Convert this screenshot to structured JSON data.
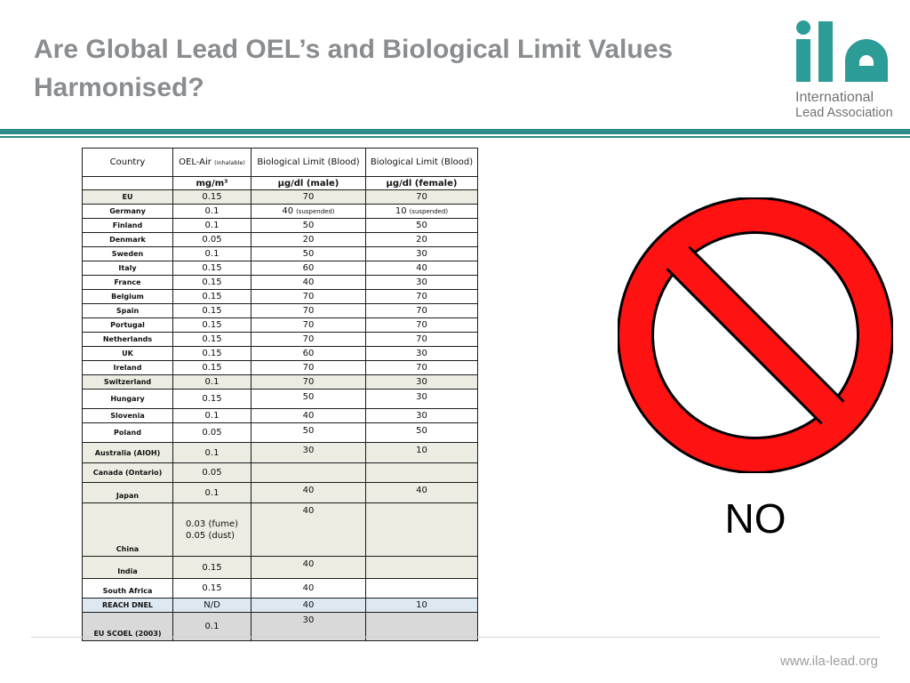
{
  "slide": {
    "title_line1": "Are Global Lead OEL’s and Biological Limit Values",
    "title_line2": "Harmonised?",
    "footer_url": "www.ila-lead.org",
    "answer": "NO"
  },
  "logo": {
    "mark": "ila",
    "line1": "International",
    "line2": "Lead Association",
    "color": "#2b9c96"
  },
  "colors": {
    "accent": "#2b8b86",
    "no_sign_red": "#ff1212",
    "unit_blue": "#1f3f8c"
  },
  "table": {
    "headers": {
      "country": "Country",
      "oel": "OEL-Air",
      "oel_small": "(inhalable)",
      "blood_male": "Biological Limit (Blood)",
      "blood_female": "Biological Limit (Blood)"
    },
    "units": {
      "country": "",
      "oel": "mg/m³",
      "male": "µg/dl (male)",
      "female": "µg/dl (female)"
    },
    "rows": [
      {
        "country": "EU",
        "oel": "0.15",
        "male": "70",
        "female": "70"
      },
      {
        "country": "Germany",
        "oel": "0.1",
        "male": "40",
        "male_note": "(suspended)",
        "female": "10",
        "female_note": "(suspended)"
      },
      {
        "country": "Finland",
        "oel": "0.1",
        "male": "50",
        "female": "50"
      },
      {
        "country": "Denmark",
        "oel": "0.05",
        "male": "20",
        "female": "20"
      },
      {
        "country": "Sweden",
        "oel": "0.1",
        "male": "50",
        "female": "30"
      },
      {
        "country": "Italy",
        "oel": "0.15",
        "male": "60",
        "female": "40"
      },
      {
        "country": "France",
        "oel": "0.15",
        "male": "40",
        "female": "30"
      },
      {
        "country": "Belgium",
        "oel": "0.15",
        "male": "70",
        "female": "70"
      },
      {
        "country": "Spain",
        "oel": "0.15",
        "male": "70",
        "female": "70"
      },
      {
        "country": "Portugal",
        "oel": "0.15",
        "male": "70",
        "female": "70"
      },
      {
        "country": "Netherlands",
        "oel": "0.15",
        "male": "70",
        "female": "70"
      },
      {
        "country": "UK",
        "oel": "0.15",
        "male": "60",
        "female": "30"
      },
      {
        "country": "Ireland",
        "oel": "0.15",
        "male": "70",
        "female": "70"
      },
      {
        "country": "Switzerland",
        "oel": "0.1",
        "male": "70",
        "female": "30"
      },
      {
        "country": "Hungary",
        "oel": "0.15",
        "male": "50",
        "female": "30"
      },
      {
        "country": "Slovenia",
        "oel": "0.1",
        "male": "40",
        "female": "30"
      },
      {
        "country": "Poland",
        "oel": "0.05",
        "male": "50",
        "female": "50"
      },
      {
        "country": "Australia (AIOH)",
        "oel": "0.1",
        "male": "30",
        "female": "10"
      },
      {
        "country": "Canada (Ontario)",
        "oel": "0.05",
        "male": "",
        "female": ""
      },
      {
        "country": "Japan",
        "oel": "0.1",
        "male": "40",
        "female": "40"
      },
      {
        "country": "China",
        "oel": "0.03 (fume)",
        "oel_line2": "0.05 (dust)",
        "male": "40",
        "female": ""
      },
      {
        "country": "India",
        "oel": "0.15",
        "male": "40",
        "female": ""
      },
      {
        "country": "South Africa",
        "oel": "0.15",
        "male": "40",
        "female": ""
      },
      {
        "country": "REACH DNEL",
        "oel": "N/D",
        "male": "40",
        "female": "10"
      },
      {
        "country": "EU SCOEL (2003)",
        "oel": "0.1",
        "male": "30",
        "female": ""
      }
    ]
  }
}
